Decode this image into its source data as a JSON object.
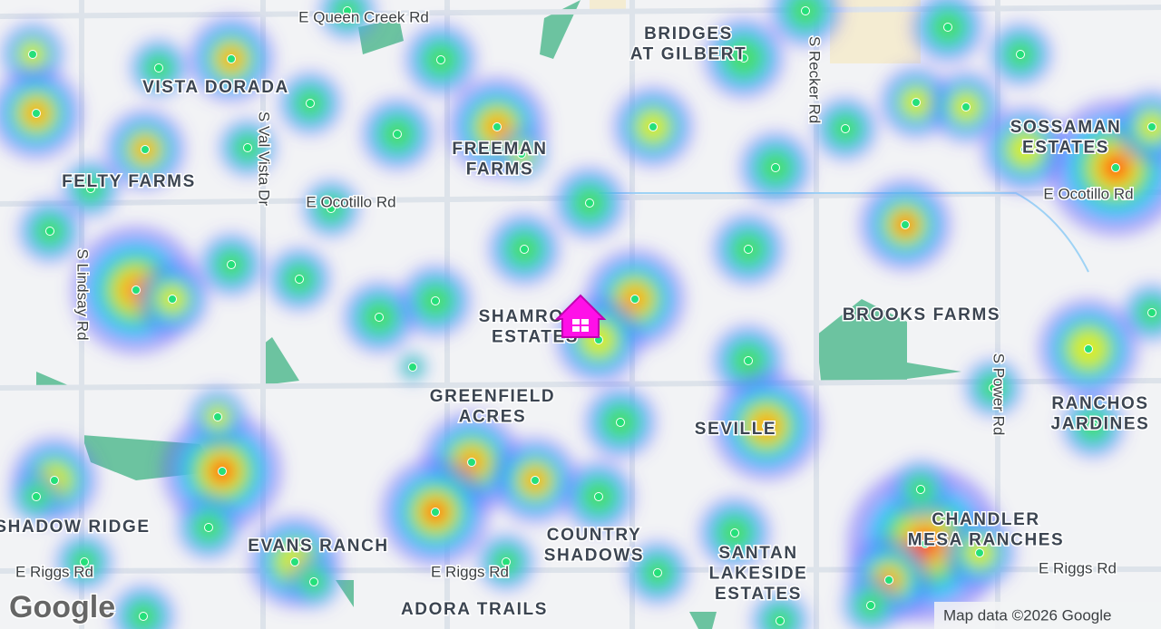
{
  "roads": [
    {
      "label": "E Queen Creek Rd"
    },
    {
      "label": "S Recker Rd"
    },
    {
      "label": "S Val Vista Dr"
    },
    {
      "label": "E Ocotillo Rd"
    },
    {
      "label": "E Ocotillo Rd"
    },
    {
      "label": "S Lindsay Rd"
    },
    {
      "label": "S Power Rd"
    },
    {
      "label": "E Riggs Rd"
    },
    {
      "label": "E Riggs Rd"
    },
    {
      "label": "E Riggs Rd"
    }
  ],
  "areas": [
    {
      "lines": [
        "VISTA DORADA"
      ]
    },
    {
      "lines": [
        "BRIDGES",
        "AT GILBERT"
      ]
    },
    {
      "lines": [
        "FREEMAN",
        "FARMS"
      ]
    },
    {
      "lines": [
        "FELTY FARMS"
      ]
    },
    {
      "lines": [
        "SOSSAMAN",
        "ESTATES"
      ]
    },
    {
      "lines": [
        "SHAMROCK",
        "ESTATES"
      ]
    },
    {
      "lines": [
        "BROOKS FARMS"
      ]
    },
    {
      "lines": [
        "GREENFIELD",
        "ACRES"
      ]
    },
    {
      "lines": [
        "SEVILLE"
      ]
    },
    {
      "lines": [
        "RANCHOS",
        "JARDINES"
      ]
    },
    {
      "lines": [
        "CHANDLER",
        "MESA RANCHES"
      ]
    },
    {
      "lines": [
        "SHADOW RIDGE"
      ]
    },
    {
      "lines": [
        "EVANS RANCH"
      ]
    },
    {
      "lines": [
        "COUNTRY",
        "SHADOWS"
      ]
    },
    {
      "lines": [
        "SANTAN",
        "LAKESIDE",
        "ESTATES"
      ]
    },
    {
      "lines": [
        "ADORA TRAILS"
      ]
    }
  ],
  "attribution": "Map data ©2026 Google",
  "logo": "Google"
}
